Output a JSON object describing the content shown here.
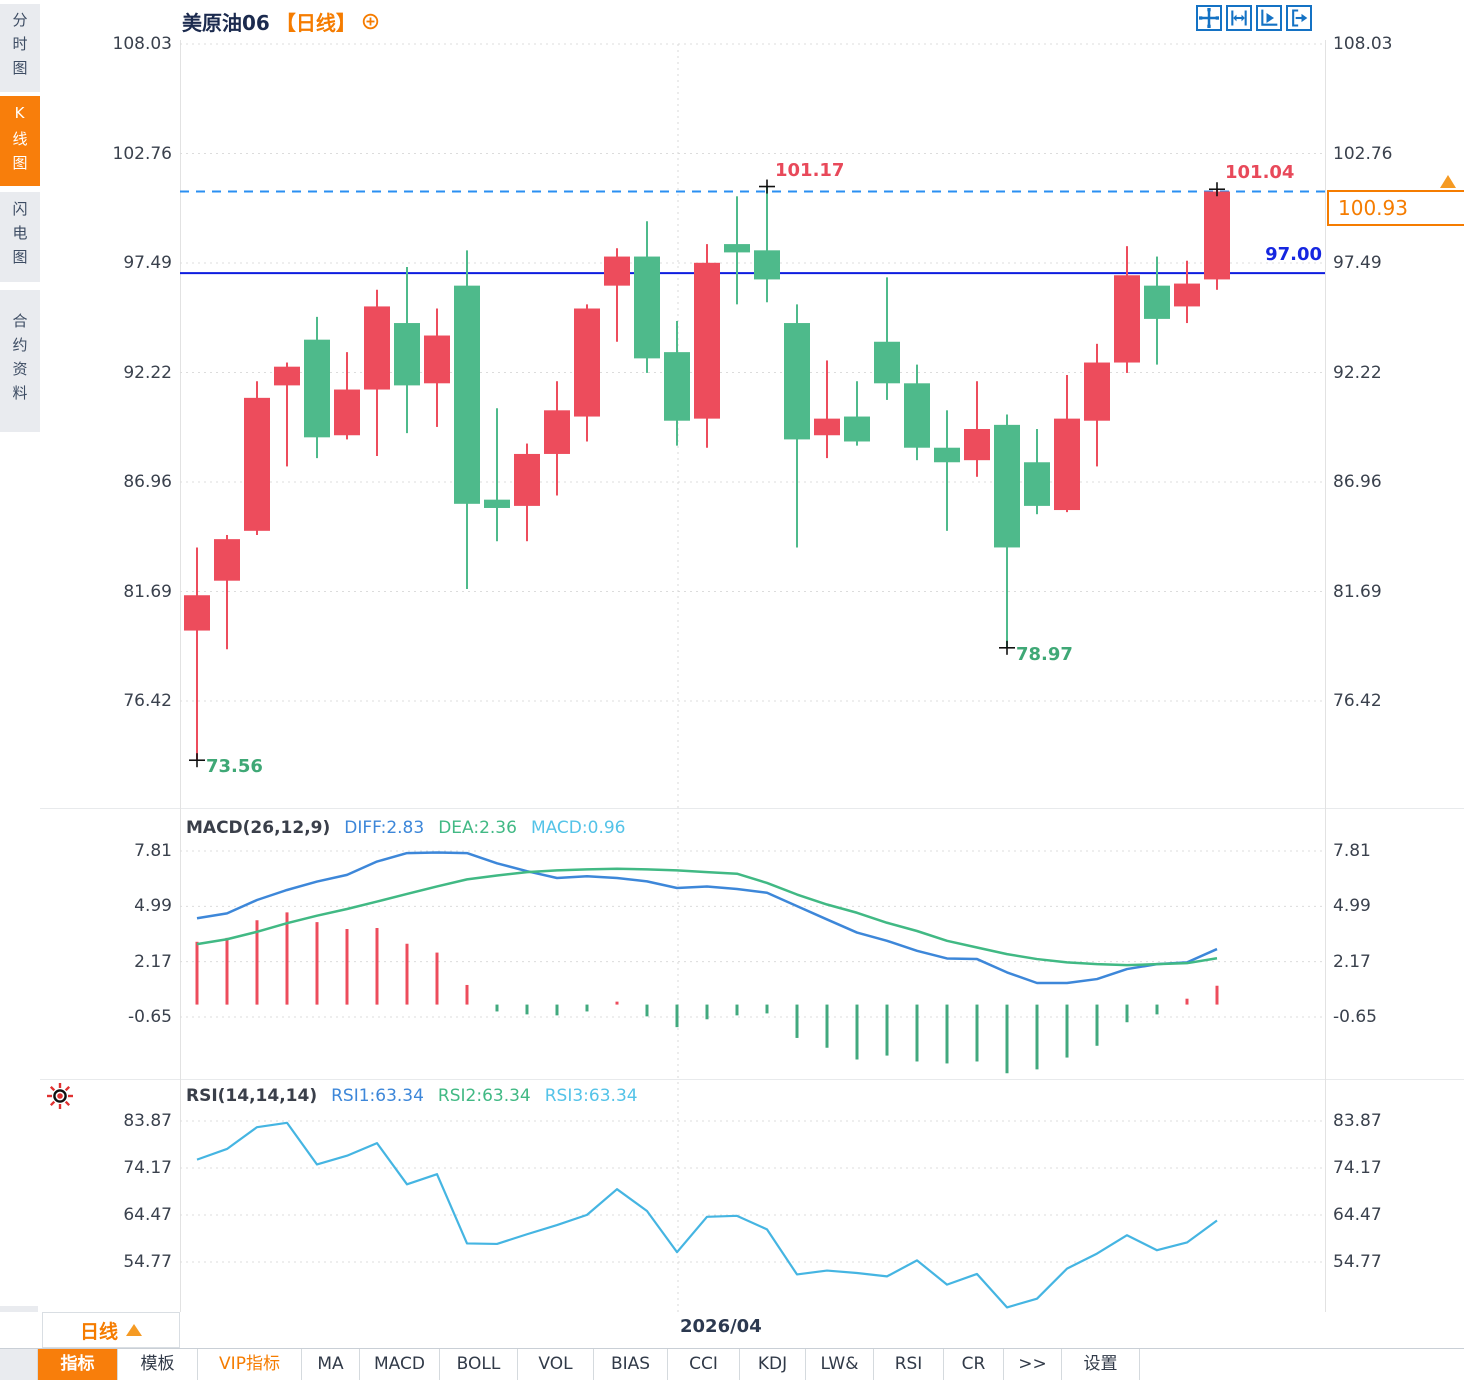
{
  "sidebar": {
    "items": [
      {
        "label": "分时图",
        "selected": false
      },
      {
        "label": "K线图",
        "selected": true
      },
      {
        "label": "闪电图",
        "selected": false
      },
      {
        "label": "合约资料",
        "selected": false
      }
    ]
  },
  "header": {
    "symbol": "美原油06",
    "period_tag": "【日线】",
    "tool_icons": [
      "move-tool-icon",
      "x-scale-icon",
      "y-scale-icon",
      "pop-out-icon"
    ]
  },
  "chart_data": {
    "type": "candlestick",
    "title": "美原油06 日线",
    "x_label": "2026/04",
    "y_ticks": [
      "108.03",
      "102.76",
      "97.49",
      "92.22",
      "86.96",
      "81.69",
      "76.42"
    ],
    "ylim": [
      76.42,
      108.03
    ],
    "horizontal_line": 97.0,
    "horizontal_line_label": "97.00",
    "last_price": 100.93,
    "last_price_label": "100.93",
    "candles": [
      [
        79.8,
        83.8,
        73.56,
        81.5
      ],
      [
        82.2,
        84.4,
        78.9,
        84.2
      ],
      [
        84.6,
        91.8,
        84.4,
        91.0
      ],
      [
        91.6,
        92.7,
        87.7,
        92.5
      ],
      [
        93.8,
        94.9,
        88.1,
        89.1
      ],
      [
        89.2,
        93.2,
        89.0,
        91.4
      ],
      [
        91.4,
        96.2,
        88.2,
        95.4
      ],
      [
        94.6,
        97.3,
        89.3,
        91.6
      ],
      [
        91.7,
        95.3,
        89.6,
        94.0
      ],
      [
        96.4,
        98.1,
        81.8,
        85.9
      ],
      [
        86.1,
        90.5,
        84.1,
        85.7
      ],
      [
        85.8,
        88.8,
        84.1,
        88.3
      ],
      [
        88.3,
        91.8,
        86.3,
        90.4
      ],
      [
        90.1,
        95.5,
        88.9,
        95.3
      ],
      [
        96.4,
        98.2,
        93.7,
        97.8
      ],
      [
        97.8,
        99.5,
        92.2,
        92.9
      ],
      [
        93.2,
        94.7,
        88.7,
        89.9
      ],
      [
        90.0,
        98.4,
        88.6,
        97.5
      ],
      [
        98.4,
        100.7,
        95.5,
        98.0
      ],
      [
        98.1,
        101.17,
        95.6,
        96.7
      ],
      [
        94.6,
        95.5,
        83.8,
        89.0
      ],
      [
        89.2,
        92.8,
        88.1,
        90.0
      ],
      [
        90.1,
        91.8,
        88.7,
        88.9
      ],
      [
        93.7,
        96.8,
        90.9,
        91.7
      ],
      [
        91.7,
        92.6,
        88.0,
        88.6
      ],
      [
        88.6,
        90.4,
        84.6,
        87.9
      ],
      [
        88.0,
        91.8,
        87.2,
        89.5
      ],
      [
        89.7,
        90.2,
        78.97,
        83.8
      ],
      [
        87.9,
        89.5,
        85.4,
        85.8
      ],
      [
        85.6,
        92.1,
        85.5,
        90.0
      ],
      [
        89.9,
        93.6,
        87.7,
        92.7
      ],
      [
        92.7,
        98.3,
        92.2,
        96.9
      ],
      [
        96.4,
        97.8,
        92.6,
        94.8
      ],
      [
        95.4,
        97.6,
        94.6,
        96.5
      ],
      [
        96.7,
        101.04,
        96.2,
        100.93
      ]
    ],
    "annotations": [
      {
        "index": 1,
        "price": 73.56,
        "kind": "low",
        "label": "73.56"
      },
      {
        "index": 20,
        "price": 101.17,
        "kind": "high",
        "label": "101.17"
      },
      {
        "index": 28,
        "price": 78.97,
        "kind": "low",
        "label": "78.97"
      },
      {
        "index": 35,
        "price": 101.04,
        "kind": "high",
        "label": "101.04"
      }
    ],
    "indicators": {
      "macd": {
        "title": "MACD(26,12,9)",
        "diff_label": "DIFF:2.83",
        "dea_label": "DEA:2.36",
        "macd_label": "MACD:0.96",
        "y_ticks": [
          "7.81",
          "4.99",
          "2.17",
          "-0.65"
        ],
        "diff": [
          4.4,
          4.65,
          5.33,
          5.84,
          6.27,
          6.61,
          7.29,
          7.72,
          7.75,
          7.72,
          7.2,
          6.8,
          6.45,
          6.54,
          6.45,
          6.28,
          5.94,
          6.02,
          5.89,
          5.7,
          5.02,
          4.34,
          3.67,
          3.25,
          2.74,
          2.35,
          2.32,
          1.64,
          1.1,
          1.1,
          1.3,
          1.81,
          2.06,
          2.15,
          2.83
        ],
        "dea": [
          3.08,
          3.33,
          3.71,
          4.15,
          4.53,
          4.87,
          5.25,
          5.64,
          6.02,
          6.38,
          6.58,
          6.75,
          6.84,
          6.89,
          6.92,
          6.89,
          6.84,
          6.75,
          6.67,
          6.2,
          5.61,
          5.1,
          4.68,
          4.17,
          3.75,
          3.25,
          2.91,
          2.57,
          2.32,
          2.15,
          2.06,
          2.01,
          2.06,
          2.11,
          2.36
        ],
        "hist": [
          3.2,
          3.4,
          4.3,
          4.7,
          4.2,
          3.85,
          3.9,
          3.1,
          2.65,
          1.0,
          -0.35,
          -0.5,
          -0.55,
          -0.35,
          0.15,
          -0.6,
          -1.15,
          -0.75,
          -0.55,
          -0.45,
          -1.7,
          -2.2,
          -2.8,
          -2.6,
          -2.9,
          -3.0,
          -2.9,
          -3.5,
          -3.3,
          -2.7,
          -2.1,
          -0.9,
          -0.5,
          0.3,
          0.96
        ]
      },
      "rsi": {
        "title": "RSI(14,14,14)",
        "rsi1_label": "RSI1:63.34",
        "rsi2_label": "RSI2:63.34",
        "rsi3_label": "RSI3:63.34",
        "y_ticks": [
          "83.87",
          "74.17",
          "64.47",
          "54.77"
        ],
        "values": [
          75.9,
          78.1,
          82.6,
          83.5,
          74.9,
          76.7,
          79.3,
          70.8,
          72.9,
          58.6,
          58.5,
          60.5,
          62.4,
          64.5,
          69.8,
          65.3,
          56.8,
          64.1,
          64.3,
          61.5,
          52.2,
          53.0,
          52.5,
          51.8,
          55.1,
          50.1,
          52.3,
          45.4,
          47.2,
          53.4,
          56.5,
          60.3,
          57.2,
          58.8,
          63.34
        ]
      }
    },
    "colors": {
      "up": "#ed4c5c",
      "down": "#4eba8b",
      "diff_line": "#3d87d9",
      "dea_line": "#41b984",
      "rsi_line": "#45b5e2",
      "hline": "#0d1cdf",
      "dashed_line": "#2a8ff2",
      "accent": "#f57c00"
    }
  },
  "time_axis": {
    "gridline_label": "2026/04",
    "period_selector": "日线"
  },
  "toolbar": {
    "tabs": [
      {
        "label": "指标",
        "selected": true
      },
      {
        "label": "模板"
      },
      {
        "label": "VIP指标",
        "accent": true
      },
      {
        "label": "MA"
      },
      {
        "label": "MACD"
      },
      {
        "label": "BOLL"
      },
      {
        "label": "VOL"
      },
      {
        "label": "BIAS"
      },
      {
        "label": "CCI"
      },
      {
        "label": "KDJ"
      },
      {
        "label": "LW&"
      },
      {
        "label": "RSI"
      },
      {
        "label": "CR"
      },
      {
        "label": ">>"
      },
      {
        "label": "设置"
      }
    ]
  }
}
